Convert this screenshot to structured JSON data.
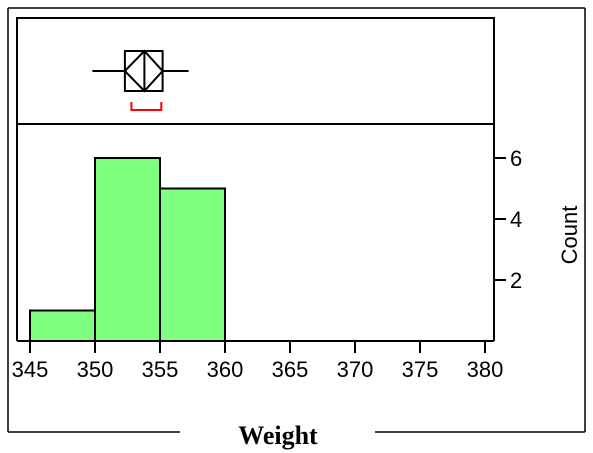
{
  "chart_data": {
    "type": "bar",
    "subtype": "histogram with outlier box plot",
    "xlabel": "Weight",
    "ylabel": "Count",
    "xlim": [
      344,
      381
    ],
    "ylim": [
      0,
      7
    ],
    "x_ticks": [
      345,
      350,
      355,
      360,
      365,
      370,
      375,
      380
    ],
    "y_ticks": [
      2,
      4,
      6
    ],
    "bins": [
      {
        "start": 345,
        "end": 350,
        "count": 1
      },
      {
        "start": 350,
        "end": 355,
        "count": 6
      },
      {
        "start": 355,
        "end": 360,
        "count": 5
      }
    ],
    "boxplot": {
      "whisker_low": 349.8,
      "q1": 352.3,
      "median": 353.8,
      "q3": 355.2,
      "whisker_high": 357.2,
      "mean": 353.8,
      "mean_ci": [
        352.3,
        355.2
      ],
      "shortest_half": [
        352.8,
        355.1
      ]
    },
    "grid": false,
    "colors": {
      "bar_fill": "#80ff80",
      "outline": "#000000",
      "shortest_half": "#ff0000"
    }
  }
}
